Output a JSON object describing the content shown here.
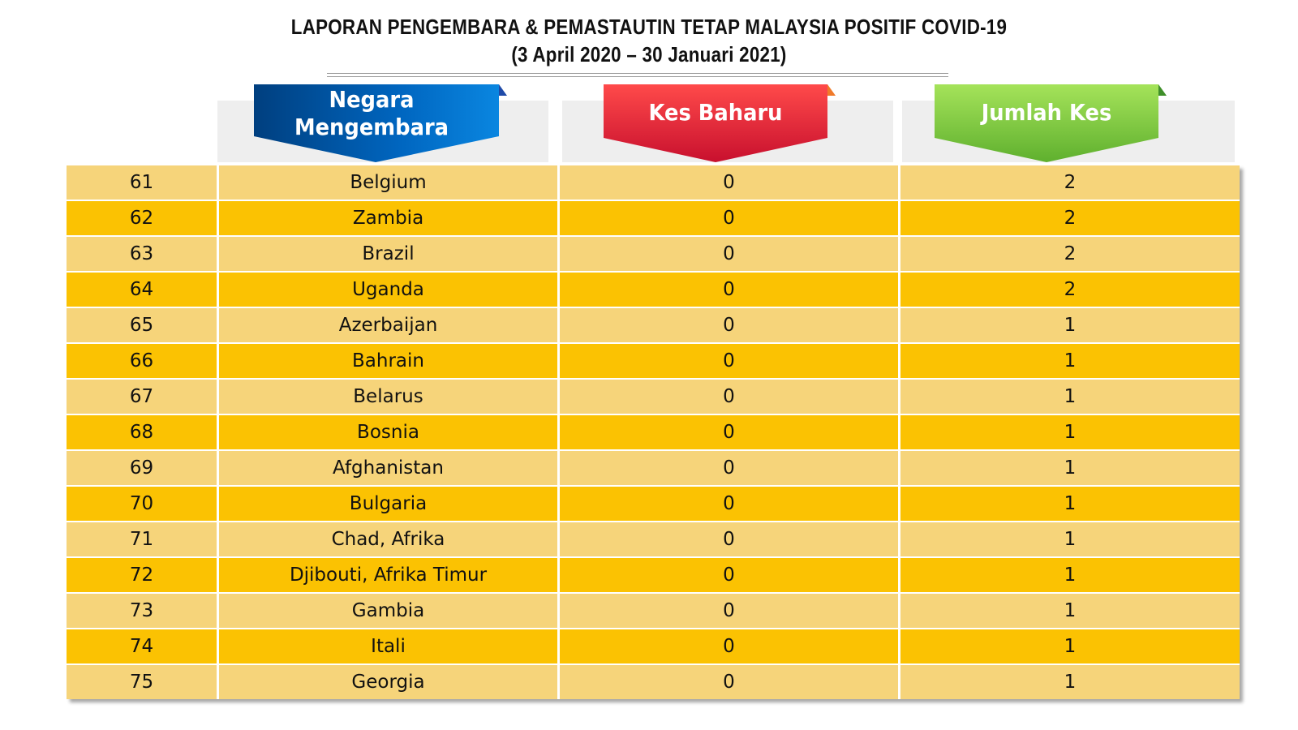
{
  "title": {
    "line1": "LAPORAN PENGEMBARA & PEMASTAUTIN TETAP MALAYSIA POSITIF COVID-19",
    "line2": "(3 April 2020 –  30 Januari 2021)"
  },
  "headers": {
    "country": "Negara Mengembara",
    "new_cases": "Kes Baharu",
    "total_cases": "Jumlah Kes"
  },
  "colors": {
    "header_country": "#0072c6",
    "header_new": "#e8303a",
    "header_total": "#8fd14f",
    "row_light": "#f6d47a",
    "row_dark": "#fbc202"
  },
  "rows": [
    {
      "no": "61",
      "country": "Belgium",
      "new": "0",
      "total": "2"
    },
    {
      "no": "62",
      "country": "Zambia",
      "new": "0",
      "total": "2"
    },
    {
      "no": "63",
      "country": "Brazil",
      "new": "0",
      "total": "2"
    },
    {
      "no": "64",
      "country": "Uganda",
      "new": "0",
      "total": "2"
    },
    {
      "no": "65",
      "country": "Azerbaijan",
      "new": "0",
      "total": "1"
    },
    {
      "no": "66",
      "country": "Bahrain",
      "new": "0",
      "total": "1"
    },
    {
      "no": "67",
      "country": "Belarus",
      "new": "0",
      "total": "1"
    },
    {
      "no": "68",
      "country": "Bosnia",
      "new": "0",
      "total": "1"
    },
    {
      "no": "69",
      "country": "Afghanistan",
      "new": "0",
      "total": "1"
    },
    {
      "no": "70",
      "country": "Bulgaria",
      "new": "0",
      "total": "1"
    },
    {
      "no": "71",
      "country": "Chad, Afrika",
      "new": "0",
      "total": "1"
    },
    {
      "no": "72",
      "country": "Djibouti, Afrika Timur",
      "new": "0",
      "total": "1"
    },
    {
      "no": "73",
      "country": "Gambia",
      "new": "0",
      "total": "1"
    },
    {
      "no": "74",
      "country": "Itali",
      "new": "0",
      "total": "1"
    },
    {
      "no": "75",
      "country": "Georgia",
      "new": "0",
      "total": "1"
    }
  ]
}
